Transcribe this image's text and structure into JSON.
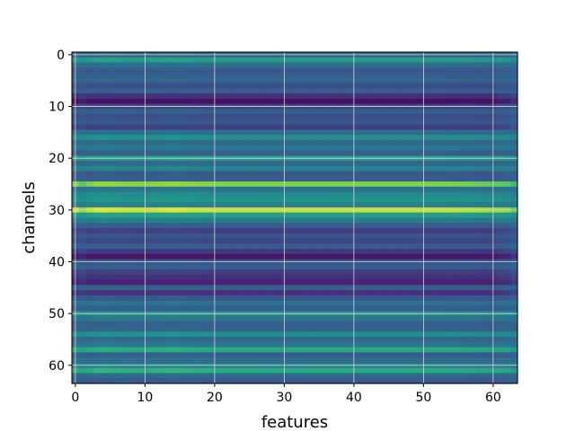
{
  "chart_data": {
    "type": "heatmap",
    "title": "",
    "xlabel": "features",
    "ylabel": "channels",
    "n_rows": 64,
    "n_cols": 64,
    "xlim": [
      -0.5,
      63.5
    ],
    "ylim": [
      63.5,
      -0.5
    ],
    "x_ticks": [
      0,
      10,
      20,
      30,
      40,
      50,
      60
    ],
    "y_ticks": [
      0,
      10,
      20,
      30,
      40,
      50,
      60
    ],
    "grid": true,
    "colormap": "viridis",
    "row_values": [
      0.32,
      0.56,
      0.36,
      0.28,
      0.3,
      0.33,
      0.24,
      0.3,
      0.16,
      0.06,
      0.22,
      0.3,
      0.24,
      0.28,
      0.2,
      0.36,
      0.5,
      0.34,
      0.4,
      0.3,
      0.55,
      0.34,
      0.44,
      0.28,
      0.3,
      0.82,
      0.38,
      0.48,
      0.52,
      0.44,
      0.92,
      0.56,
      0.42,
      0.3,
      0.2,
      0.26,
      0.22,
      0.3,
      0.18,
      0.08,
      0.26,
      0.3,
      0.2,
      0.16,
      0.12,
      0.3,
      0.16,
      0.28,
      0.38,
      0.3,
      0.48,
      0.4,
      0.3,
      0.32,
      0.5,
      0.34,
      0.4,
      0.62,
      0.3,
      0.36,
      0.42,
      0.64,
      0.34,
      0.28
    ],
    "col_profile": [
      1.0,
      0.85,
      0.98,
      1.02,
      1.03,
      1.02,
      1.01,
      1.0,
      1.0,
      1.0,
      0.99,
      1.0,
      1.01,
      1.02,
      1.03,
      1.02,
      1.01,
      1.0,
      1.0,
      0.99,
      0.98,
      0.98,
      0.98,
      0.98,
      0.98,
      0.98,
      0.98,
      0.98,
      0.98,
      0.98,
      0.98,
      0.98,
      0.98,
      0.98,
      0.98,
      0.98,
      0.98,
      0.98,
      0.98,
      0.98,
      0.98,
      0.98,
      0.98,
      0.98,
      0.98,
      0.98,
      0.98,
      0.98,
      0.98,
      0.98,
      0.98,
      0.98,
      0.98,
      0.98,
      0.97,
      0.97,
      0.96,
      0.96,
      0.95,
      0.94,
      0.92,
      0.88,
      0.85,
      0.7
    ]
  }
}
